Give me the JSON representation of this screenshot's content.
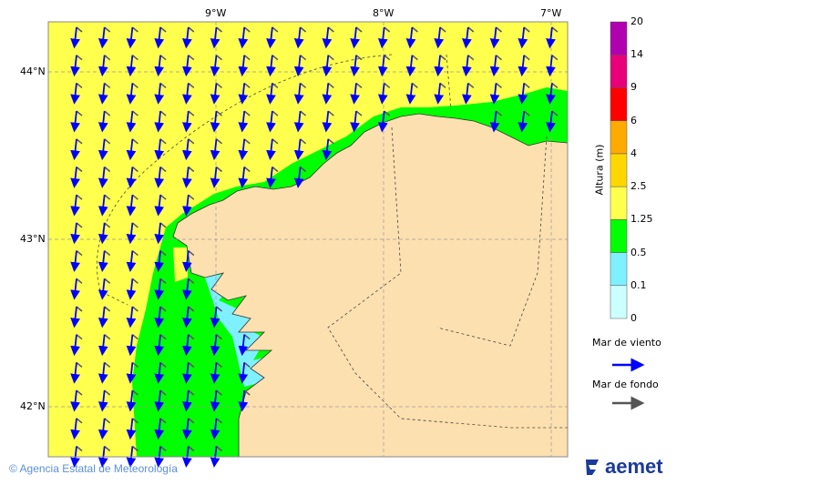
{
  "map": {
    "lon_labels": [
      "9°W",
      "8°W",
      "7°W"
    ],
    "lat_labels": [
      "44°N",
      "43°N",
      "42°N"
    ],
    "colors": {
      "sea_high": "#ffff4d",
      "sea_mid": "#00ff00",
      "sea_low": "#7ff0ff",
      "land": "#fde0b0",
      "wind_sea_arrow": "#0000ff",
      "swell_arrow": "#555555"
    },
    "wind_sea_direction": "south",
    "swell_direction": "southeast"
  },
  "legend": {
    "title": "Altura (m)",
    "levels": [
      "20",
      "14",
      "9",
      "6",
      "4",
      "2.5",
      "1.25",
      "0.5",
      "0.1",
      "0"
    ],
    "bands": [
      "#b000b0",
      "#e8007a",
      "#ff0000",
      "#ffaa00",
      "#ffd700",
      "#ffff4d",
      "#00ff00",
      "#7ff0ff",
      "#ccffff"
    ],
    "wind_sea_label": "Mar de viento",
    "swell_label": "Mar de fondo"
  },
  "footer": {
    "copyright": "© Agencia Estatal de Meteorología",
    "logo_text": "aemet"
  }
}
